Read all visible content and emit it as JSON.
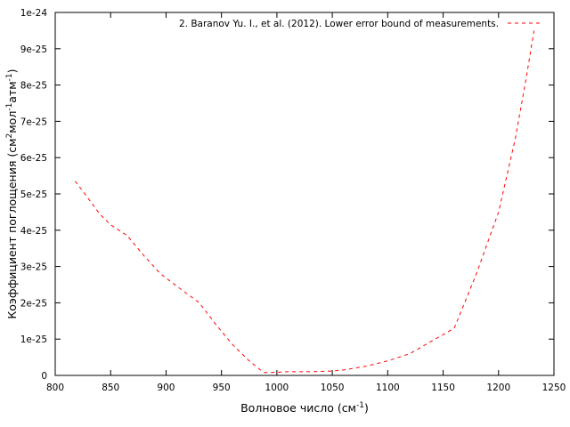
{
  "chart_data": {
    "type": "line",
    "title": "",
    "xlabel": "Волновое число (см",
    "xlabel_sup": "-1",
    "xlabel_end": ")",
    "ylabel_parts": [
      "Коэффициент поглощения (см",
      "2",
      "мол",
      "-1",
      "атм",
      "-1",
      ")"
    ],
    "xlim": [
      800,
      1250
    ],
    "ylim": [
      0,
      1e-24
    ],
    "x_ticks": [
      800,
      850,
      900,
      950,
      1000,
      1050,
      1100,
      1150,
      1200,
      1250
    ],
    "x_tick_labels": [
      "800",
      "850",
      "900",
      "950",
      "1000",
      "1050",
      "1100",
      "1150",
      "1200",
      "1250"
    ],
    "y_ticks": [
      0,
      1e-25,
      2e-25,
      3e-25,
      4e-25,
      5e-25,
      6e-25,
      7e-25,
      8e-25,
      9e-25,
      1e-24
    ],
    "y_tick_labels": [
      "0",
      "1e-25",
      "2e-25",
      "3e-25",
      "4e-25",
      "5e-25",
      "6e-25",
      "7e-25",
      "8e-25",
      "9e-25",
      "1e-24"
    ],
    "grid": false,
    "legend_position": "top-right",
    "series": [
      {
        "name": "2. Baranov Yu. I., et al. (2012). Lower error bound of measurements.",
        "color": "#ff0000",
        "style": "dashed",
        "x": [
          818,
          828,
          840,
          850,
          865,
          880,
          895,
          910,
          930,
          945,
          960,
          975,
          988,
          995,
          1010,
          1030,
          1050,
          1060,
          1080,
          1100,
          1120,
          1140,
          1160,
          1180,
          1200,
          1215,
          1225,
          1232
        ],
        "y": [
          5.35e-25,
          4.95e-25,
          4.45e-25,
          4.15e-25,
          3.85e-25,
          3.3e-25,
          2.8e-25,
          2.45e-25,
          2e-25,
          1.4e-25,
          8.5e-26,
          4e-26,
          8e-27,
          8e-27,
          1e-26,
          1e-26,
          1.2e-26,
          1.5e-26,
          2.5e-26,
          4e-26,
          6e-26,
          9.5e-26,
          1.3e-25,
          2.8e-25,
          4.5e-25,
          6.5e-25,
          8.2e-25,
          9.5e-25
        ]
      }
    ]
  }
}
